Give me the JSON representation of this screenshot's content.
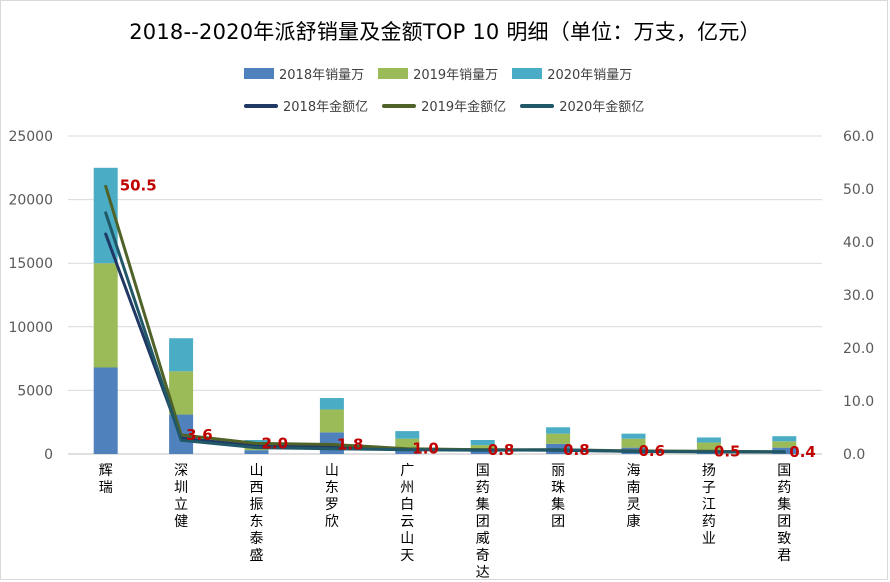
{
  "chart_data": {
    "type": "bar",
    "stacked": true,
    "title": "2018--2020年派舒销量及金额TOP 10 明细（单位：万支，亿元）",
    "categories": [
      "辉瑞",
      "深圳立健",
      "山西振东泰盛",
      "山东罗欣",
      "广州白云山天",
      "国药集团威奇达",
      "丽珠集团",
      "海南灵康",
      "扬子江药业",
      "国药集团致君"
    ],
    "series": [
      {
        "name": "2018年销量万",
        "axis": "left",
        "kind": "bar",
        "color": "#4f81bd",
        "values": [
          6800,
          3100,
          300,
          1700,
          400,
          400,
          800,
          500,
          300,
          500
        ]
      },
      {
        "name": "2019年销量万",
        "axis": "left",
        "kind": "bar",
        "color": "#9bbb59",
        "values": [
          8200,
          3400,
          600,
          1800,
          800,
          300,
          800,
          700,
          600,
          500
        ]
      },
      {
        "name": "2020年销量万",
        "axis": "left",
        "kind": "bar",
        "color": "#4bacc6",
        "values": [
          7500,
          2600,
          200,
          900,
          600,
          400,
          500,
          400,
          400,
          400
        ]
      },
      {
        "name": "2018年金额亿",
        "axis": "right",
        "kind": "line",
        "color": "#1f3864",
        "values": [
          41.5,
          3.0,
          1.5,
          1.5,
          0.9,
          0.8,
          0.7,
          0.5,
          0.5,
          0.4
        ]
      },
      {
        "name": "2019年金额亿",
        "axis": "right",
        "kind": "line",
        "color": "#4f6228",
        "values": [
          50.5,
          3.6,
          2.0,
          1.8,
          1.0,
          0.8,
          0.8,
          0.6,
          0.5,
          0.4
        ]
      },
      {
        "name": "2020年金额亿",
        "axis": "right",
        "kind": "line",
        "color": "#215868",
        "values": [
          45.5,
          2.6,
          1.2,
          1.0,
          0.8,
          0.7,
          0.8,
          0.5,
          0.4,
          0.4
        ]
      }
    ],
    "data_labels": [
      "50.5",
      "3.6",
      "2.0",
      "1.8",
      "1.0",
      "0.8",
      "0.8",
      "0.6",
      "0.5",
      "0.4"
    ],
    "y_left": {
      "min": 0,
      "max": 25000,
      "ticks": [
        "0",
        "5000",
        "10000",
        "15000",
        "20000",
        "25000"
      ]
    },
    "y_right": {
      "min": 0,
      "max": 60,
      "ticks": [
        "0.0",
        "10.0",
        "20.0",
        "30.0",
        "40.0",
        "50.0",
        "60.0"
      ]
    },
    "grid": true,
    "legend_position": "top"
  }
}
